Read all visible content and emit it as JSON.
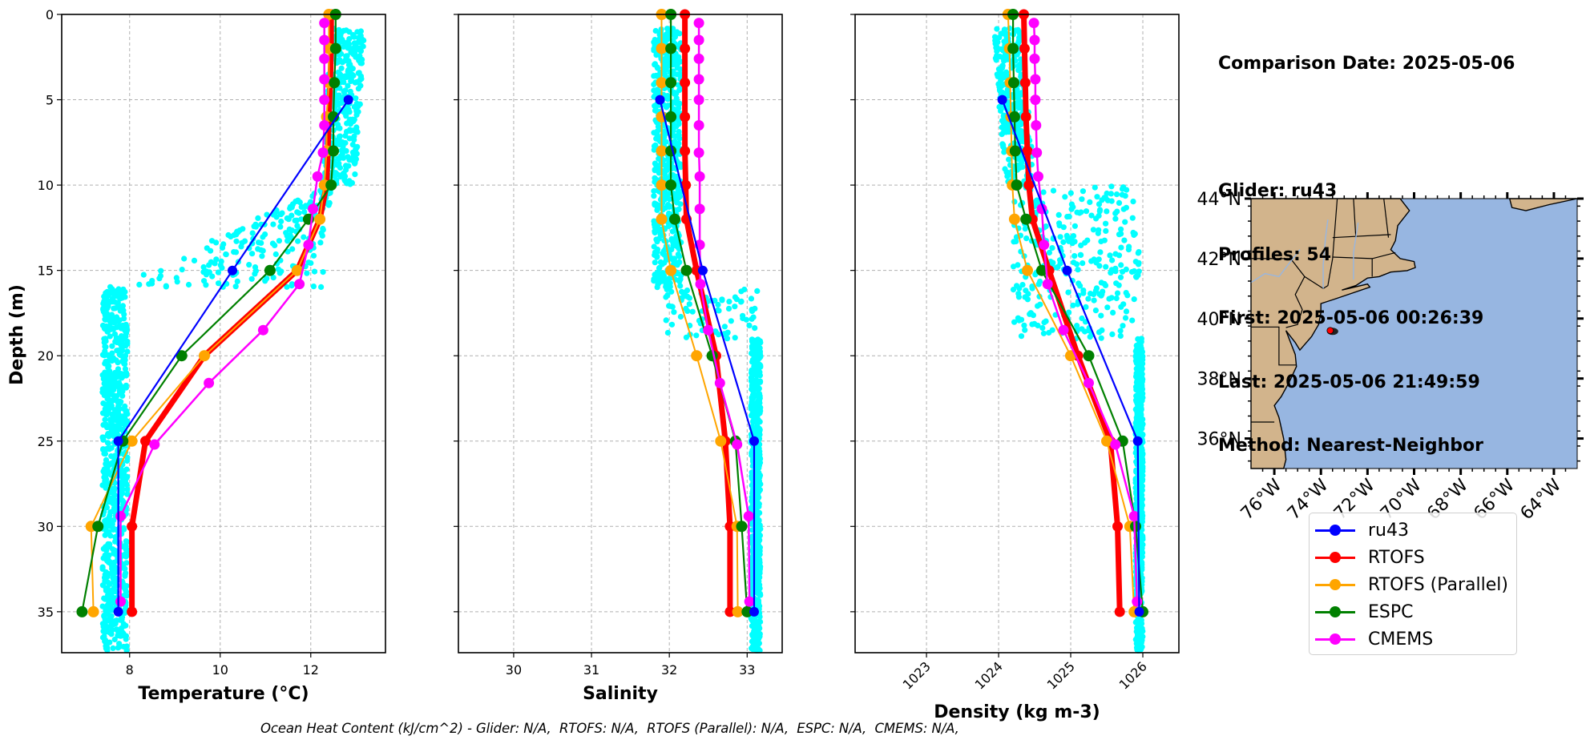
{
  "info": {
    "comparison_date": "Comparison Date: 2025-05-06",
    "glider": "Glider: ru43",
    "profiles": "Profiles: 54",
    "first": "First: 2025-05-06 00:26:39",
    "last": "Last: 2025-05-06 21:49:59",
    "method": "Method: Nearest-Neighbor"
  },
  "footer": "Ocean Heat Content (kJ/cm^2) - Glider: N/A,  RTOFS: N/A,  RTOFS (Parallel): N/A,  ESPC: N/A,  CMEMS: N/A,",
  "legend": [
    {
      "name": "ru43",
      "color": "#0000ff"
    },
    {
      "name": "RTOFS",
      "color": "#ff0000"
    },
    {
      "name": "RTOFS (Parallel)",
      "color": "#ffa500"
    },
    {
      "name": "ESPC",
      "color": "#008000"
    },
    {
      "name": "CMEMS",
      "color": "#ff00ff"
    }
  ],
  "colors": {
    "glider_scatter": "#00ffff",
    "land": "#d2b48c",
    "ocean": "#97b6e1",
    "grid": "#b0b0b0",
    "glider_track": "#ff0000"
  },
  "map": {
    "lat_ticks": [
      "44°N",
      "42°N",
      "40°N",
      "38°N",
      "36°N"
    ],
    "lat_values": [
      44,
      42,
      40,
      38,
      36
    ],
    "lon_ticks": [
      "76°W",
      "74°W",
      "72°W",
      "70°W",
      "68°W",
      "66°W",
      "64°W"
    ],
    "lon_values": [
      -76,
      -74,
      -72,
      -70,
      -68,
      -66,
      -64
    ],
    "lon_range": [
      -77,
      -63
    ],
    "lat_range": [
      35,
      44
    ],
    "glider_position": {
      "lon": -73.6,
      "lat": 39.6
    }
  },
  "chart_data": [
    {
      "type": "line",
      "id": "temperature",
      "xlabel": "Temperature (°C)",
      "ylabel": "Depth (m)",
      "xlim": [
        6.5,
        13.65
      ],
      "ylim": [
        37.4,
        0
      ],
      "xticks": [
        8,
        10,
        12
      ],
      "yticks": [
        0,
        5,
        10,
        15,
        20,
        25,
        30,
        35
      ],
      "grid": true,
      "glider_scatter_summary": "dense cyan profile points, ~12.4-13.2 at 1-10m, transitioning 12->7.6 between 10-16m, ~7.4-8.0 below 16m",
      "series": [
        {
          "name": "ru43",
          "depth": [
            5,
            15,
            25,
            35
          ],
          "values": [
            12.83,
            10.27,
            7.75,
            7.75
          ]
        },
        {
          "name": "RTOFS",
          "depth": [
            0,
            2,
            4,
            6,
            8,
            10,
            12,
            15,
            20,
            25,
            30,
            35
          ],
          "values": [
            12.45,
            12.45,
            12.43,
            12.4,
            12.38,
            12.35,
            12.2,
            11.7,
            9.65,
            8.35,
            8.05,
            8.05
          ]
        },
        {
          "name": "RTOFS (Parallel)",
          "depth": [
            0,
            2,
            4,
            6,
            8,
            10,
            12,
            15,
            20,
            25,
            30,
            35
          ],
          "values": [
            12.4,
            12.4,
            12.4,
            12.35,
            12.35,
            12.3,
            12.2,
            11.7,
            9.65,
            8.05,
            7.15,
            7.2
          ]
        },
        {
          "name": "ESPC",
          "depth": [
            0,
            2,
            4,
            6,
            8,
            10,
            12,
            15,
            20,
            25,
            30,
            35
          ],
          "values": [
            12.55,
            12.55,
            12.52,
            12.5,
            12.5,
            12.45,
            11.95,
            11.1,
            9.15,
            7.85,
            7.3,
            6.95
          ]
        },
        {
          "name": "CMEMS",
          "depth": [
            0.5,
            1.5,
            2.6,
            3.8,
            5.0,
            6.5,
            8.1,
            9.5,
            11.4,
            13.5,
            15.8,
            18.5,
            21.6,
            25.2,
            29.4,
            34.4
          ],
          "values": [
            12.3,
            12.3,
            12.3,
            12.3,
            12.3,
            12.3,
            12.27,
            12.15,
            12.05,
            11.95,
            11.75,
            10.95,
            9.75,
            8.55,
            7.8,
            7.8
          ]
        }
      ]
    },
    {
      "type": "line",
      "id": "salinity",
      "xlabel": "Salinity",
      "ylabel": "",
      "xlim": [
        29.29,
        33.45
      ],
      "ylim": [
        37.4,
        0
      ],
      "xticks": [
        30,
        31,
        32,
        33
      ],
      "yticks": [
        0,
        5,
        10,
        15,
        20,
        25,
        30,
        35
      ],
      "grid": true,
      "series": [
        {
          "name": "ru43",
          "depth": [
            5,
            15,
            25,
            35
          ],
          "values": [
            31.88,
            32.43,
            33.09,
            33.09
          ]
        },
        {
          "name": "RTOFS",
          "depth": [
            0,
            2,
            4,
            6,
            8,
            10,
            12,
            15,
            20,
            25,
            30,
            35
          ],
          "values": [
            32.2,
            32.2,
            32.2,
            32.2,
            32.2,
            32.21,
            32.22,
            32.35,
            32.6,
            32.72,
            32.78,
            32.78
          ]
        },
        {
          "name": "RTOFS (Parallel)",
          "depth": [
            0,
            2,
            4,
            6,
            8,
            10,
            12,
            15,
            20,
            25,
            30,
            35
          ],
          "values": [
            31.9,
            31.9,
            31.9,
            31.9,
            31.9,
            31.9,
            31.9,
            32.02,
            32.35,
            32.66,
            32.87,
            32.88
          ]
        },
        {
          "name": "ESPC",
          "depth": [
            0,
            2,
            4,
            6,
            8,
            10,
            12,
            15,
            20,
            25,
            30,
            35
          ],
          "values": [
            32.02,
            32.02,
            32.02,
            32.02,
            32.02,
            32.02,
            32.07,
            32.22,
            32.55,
            32.85,
            32.93,
            33.0
          ]
        },
        {
          "name": "CMEMS",
          "depth": [
            0.5,
            1.5,
            2.6,
            3.8,
            5.0,
            6.5,
            8.1,
            9.5,
            11.4,
            13.5,
            15.8,
            18.5,
            21.6,
            25.2,
            29.4,
            34.4
          ],
          "values": [
            32.38,
            32.38,
            32.38,
            32.38,
            32.38,
            32.38,
            32.38,
            32.39,
            32.39,
            32.39,
            32.4,
            32.5,
            32.65,
            32.87,
            33.02,
            33.03
          ]
        }
      ]
    },
    {
      "type": "line",
      "id": "density",
      "xlabel": "Density (kg m-3)",
      "ylabel": "",
      "xlim": [
        1022.01,
        1026.5
      ],
      "ylim": [
        37.4,
        0
      ],
      "xticks": [
        1023,
        1024,
        1025,
        1026
      ],
      "yticks": [
        0,
        5,
        10,
        15,
        20,
        25,
        30,
        35
      ],
      "grid": true,
      "series": [
        {
          "name": "ru43",
          "depth": [
            5,
            15,
            25,
            35
          ],
          "values": [
            1024.05,
            1024.95,
            1025.93,
            1025.95
          ]
        },
        {
          "name": "RTOFS",
          "depth": [
            0,
            2,
            4,
            6,
            8,
            10,
            12,
            15,
            20,
            25,
            30,
            35
          ],
          "values": [
            1024.35,
            1024.36,
            1024.37,
            1024.38,
            1024.4,
            1024.42,
            1024.47,
            1024.7,
            1025.1,
            1025.55,
            1025.65,
            1025.68
          ]
        },
        {
          "name": "RTOFS (Parallel)",
          "depth": [
            0,
            2,
            4,
            6,
            8,
            10,
            12,
            15,
            20,
            25,
            30,
            35
          ],
          "values": [
            1024.13,
            1024.15,
            1024.16,
            1024.17,
            1024.18,
            1024.19,
            1024.22,
            1024.4,
            1025.0,
            1025.5,
            1025.82,
            1025.88
          ]
        },
        {
          "name": "ESPC",
          "depth": [
            0,
            2,
            4,
            6,
            8,
            10,
            12,
            15,
            20,
            25,
            30,
            35
          ],
          "values": [
            1024.2,
            1024.2,
            1024.21,
            1024.22,
            1024.23,
            1024.25,
            1024.38,
            1024.6,
            1025.25,
            1025.72,
            1025.9,
            1026.0
          ]
        },
        {
          "name": "CMEMS",
          "depth": [
            0.5,
            1.5,
            2.6,
            3.8,
            5.0,
            6.5,
            8.1,
            9.5,
            11.4,
            13.5,
            15.8,
            18.5,
            21.6,
            25.2,
            29.4,
            34.4
          ],
          "values": [
            1024.49,
            1024.5,
            1024.5,
            1024.51,
            1024.51,
            1024.52,
            1024.53,
            1024.55,
            1024.6,
            1024.63,
            1024.68,
            1024.9,
            1025.25,
            1025.62,
            1025.88,
            1025.92
          ]
        }
      ]
    }
  ]
}
